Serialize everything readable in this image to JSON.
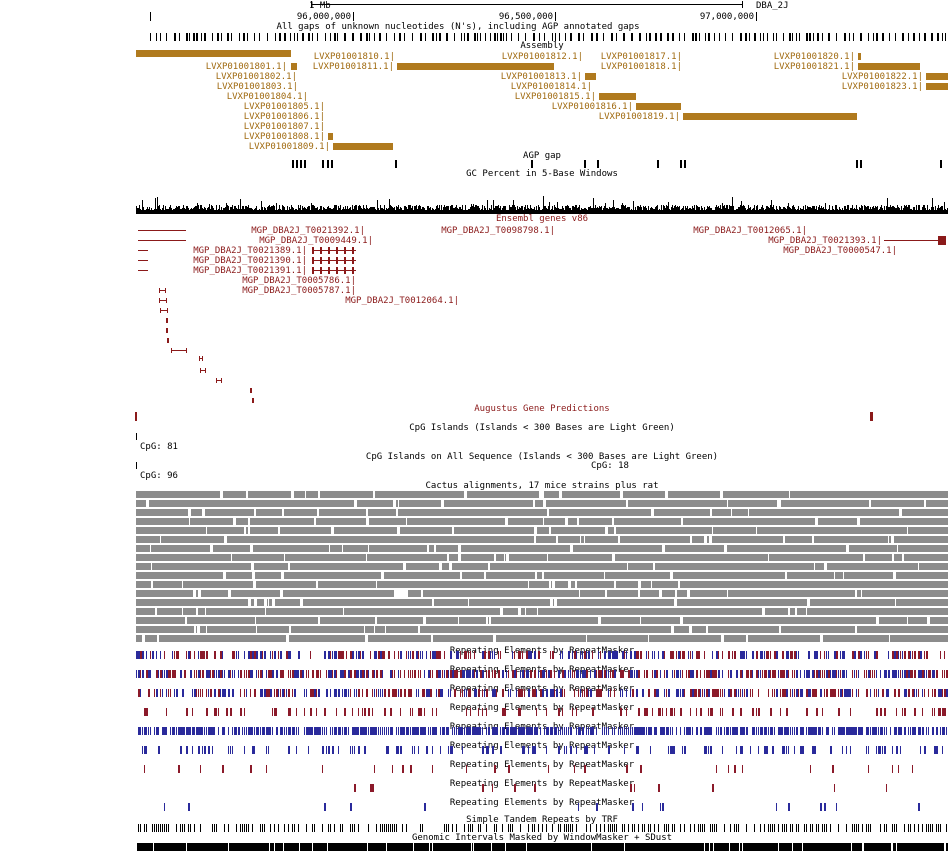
{
  "ruler": {
    "scale_label": "1 Mb",
    "assembly_label": "DBA_2J",
    "ticks": [
      "96,000,000",
      "96,500,000",
      "97,000,000"
    ]
  },
  "tracks": {
    "gaps_title": "All gaps of unknown nucleotides (N's), including AGP annotated gaps",
    "assembly_title": "Assembly",
    "agp_title": "AGP gap",
    "gc_title": "GC Percent in 5-Base Windows",
    "ensembl_title": "Ensembl genes v86",
    "augustus_title": "Augustus Gene Predictions",
    "cpg_title": "CpG Islands (Islands < 300 Bases are Light Green)",
    "cpg_all_title": "CpG Islands on All Sequence (Islands < 300 Bases are Light Green)",
    "cactus_title": "Cactus alignments, 17 mice strains plus rat",
    "rmsk_title": "Repeating Elements by RepeatMasker",
    "trf_title": "Simple Tandem Repeats by TRF",
    "wm_title": "Genomic Intervals Masked by WindowMasker + SDust"
  },
  "assembly_items": [
    "LVXP01001810.1",
    "LVXP01001801.1",
    "LVXP01001811.1",
    "LVXP01001802.1",
    "LVXP01001803.1",
    "LVXP01001804.1",
    "LVXP01001805.1",
    "LVXP01001806.1",
    "LVXP01001807.1",
    "LVXP01001808.1",
    "LVXP01001809.1",
    "LVXP01001812.1",
    "LVXP01001813.1",
    "LVXP01001814.1",
    "LVXP01001815.1",
    "LVXP01001816.1",
    "LVXP01001817.1",
    "LVXP01001818.1",
    "LVXP01001819.1",
    "LVXP01001820.1",
    "LVXP01001821.1",
    "LVXP01001822.1",
    "LVXP01001823.1"
  ],
  "ensembl_items": [
    "MGP_DBA2J_T0021392.1",
    "MGP_DBA2J_T0009449.1",
    "MGP_DBA2J_T0021389.1",
    "MGP_DBA2J_T0021390.1",
    "MGP_DBA2J_T0021391.1",
    "MGP_DBA2J_T0005786.1",
    "MGP_DBA2J_T0005787.1",
    "MGP_DBA2J_T0012064.1",
    "MGP_DBA2J_T0098798.1",
    "MGP_DBA2J_T0012065.1",
    "MGP_DBA2J_T0021393.1",
    "MGP_DBA2J_T0000547.1"
  ],
  "cpg": {
    "label_a": "CpG: 81",
    "label_b": "CpG: 96",
    "label_c": "CpG: 18"
  },
  "colors": {
    "assembly": "#b07a1e",
    "assembly_text": "#a06a10",
    "ensembl": "#8b1a1a",
    "cactus": "#8c8c8c",
    "repeat_red": "#8b1a2a",
    "repeat_blue": "#2a2a9b",
    "black": "#000000"
  }
}
